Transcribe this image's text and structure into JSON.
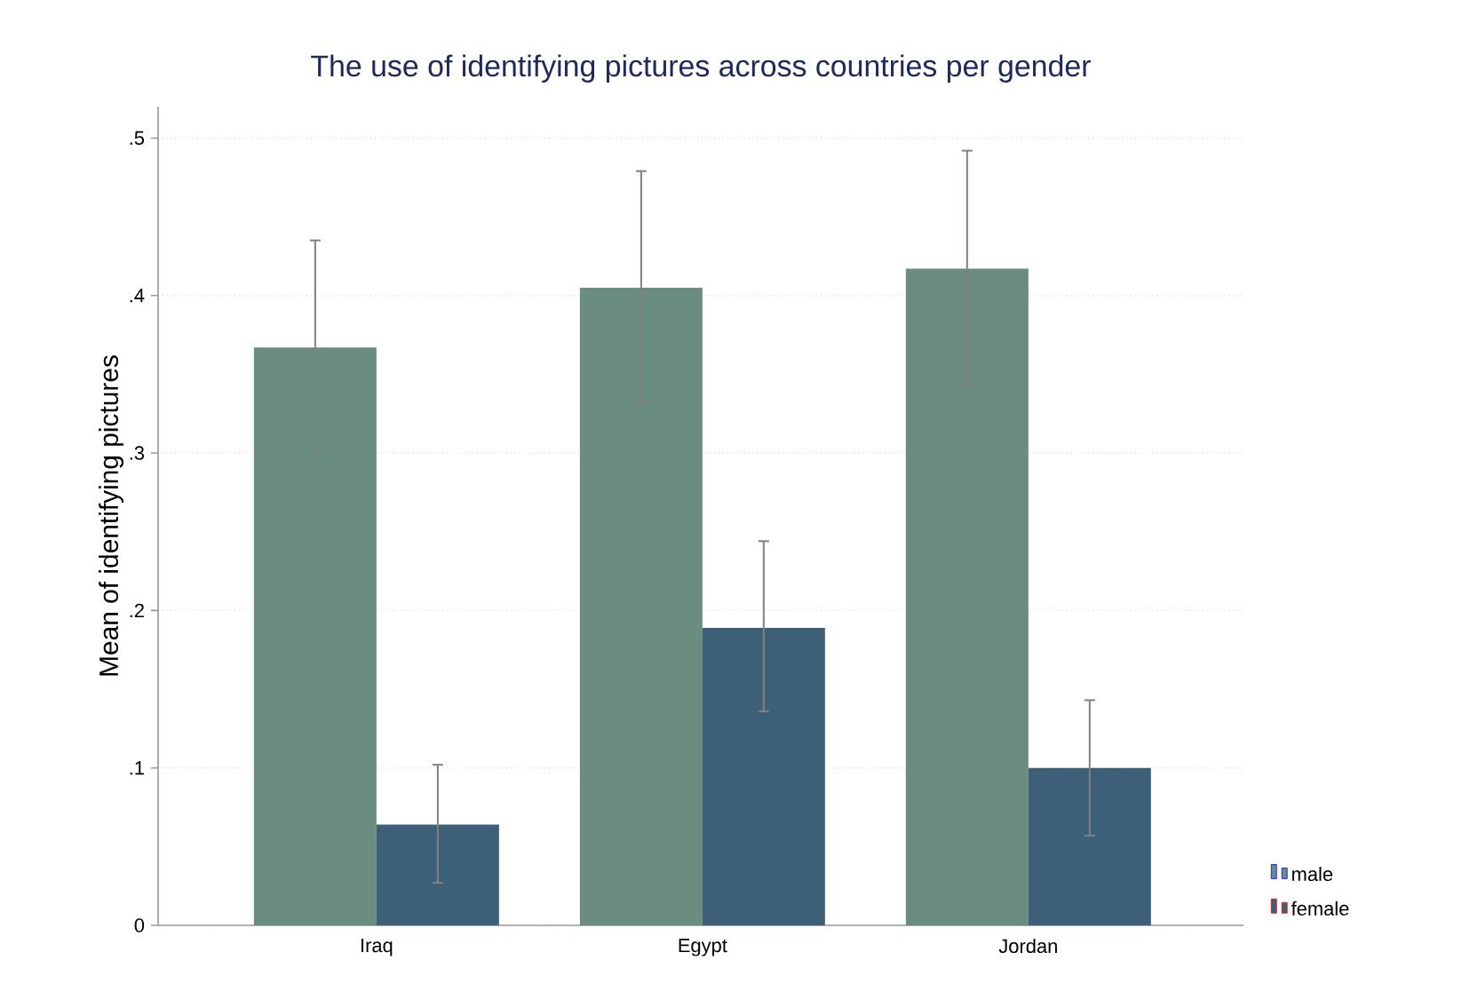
{
  "chart_data": {
    "type": "bar",
    "title": "The use of identifying pictures across countries per gender",
    "ylabel": "Mean of identifying pictures",
    "categories": [
      "Iraq",
      "Egypt",
      "Jordan"
    ],
    "series": [
      {
        "name": "male",
        "color": "#6a8d7f",
        "values": [
          0.367,
          0.405,
          0.417
        ],
        "errors": [
          [
            0.299,
            0.435
          ],
          [
            0.332,
            0.479
          ],
          [
            0.343,
            0.492
          ]
        ]
      },
      {
        "name": "female",
        "color": "#3e5f78",
        "values": [
          0.064,
          0.189,
          0.1
        ],
        "errors": [
          [
            0.027,
            0.102
          ],
          [
            0.136,
            0.244
          ],
          [
            0.057,
            0.143
          ]
        ]
      }
    ],
    "ylim": [
      0,
      0.52
    ],
    "yticks": [
      0,
      {
        "value": 0.1,
        "label": ".1"
      },
      {
        "value": 0.2,
        "label": ".2"
      },
      {
        "value": 0.3,
        "label": ".3"
      },
      {
        "value": 0.4,
        "label": ".4"
      },
      {
        "value": 0.5,
        "label": ".5"
      }
    ],
    "grid": "y",
    "legend": "bottom right"
  }
}
